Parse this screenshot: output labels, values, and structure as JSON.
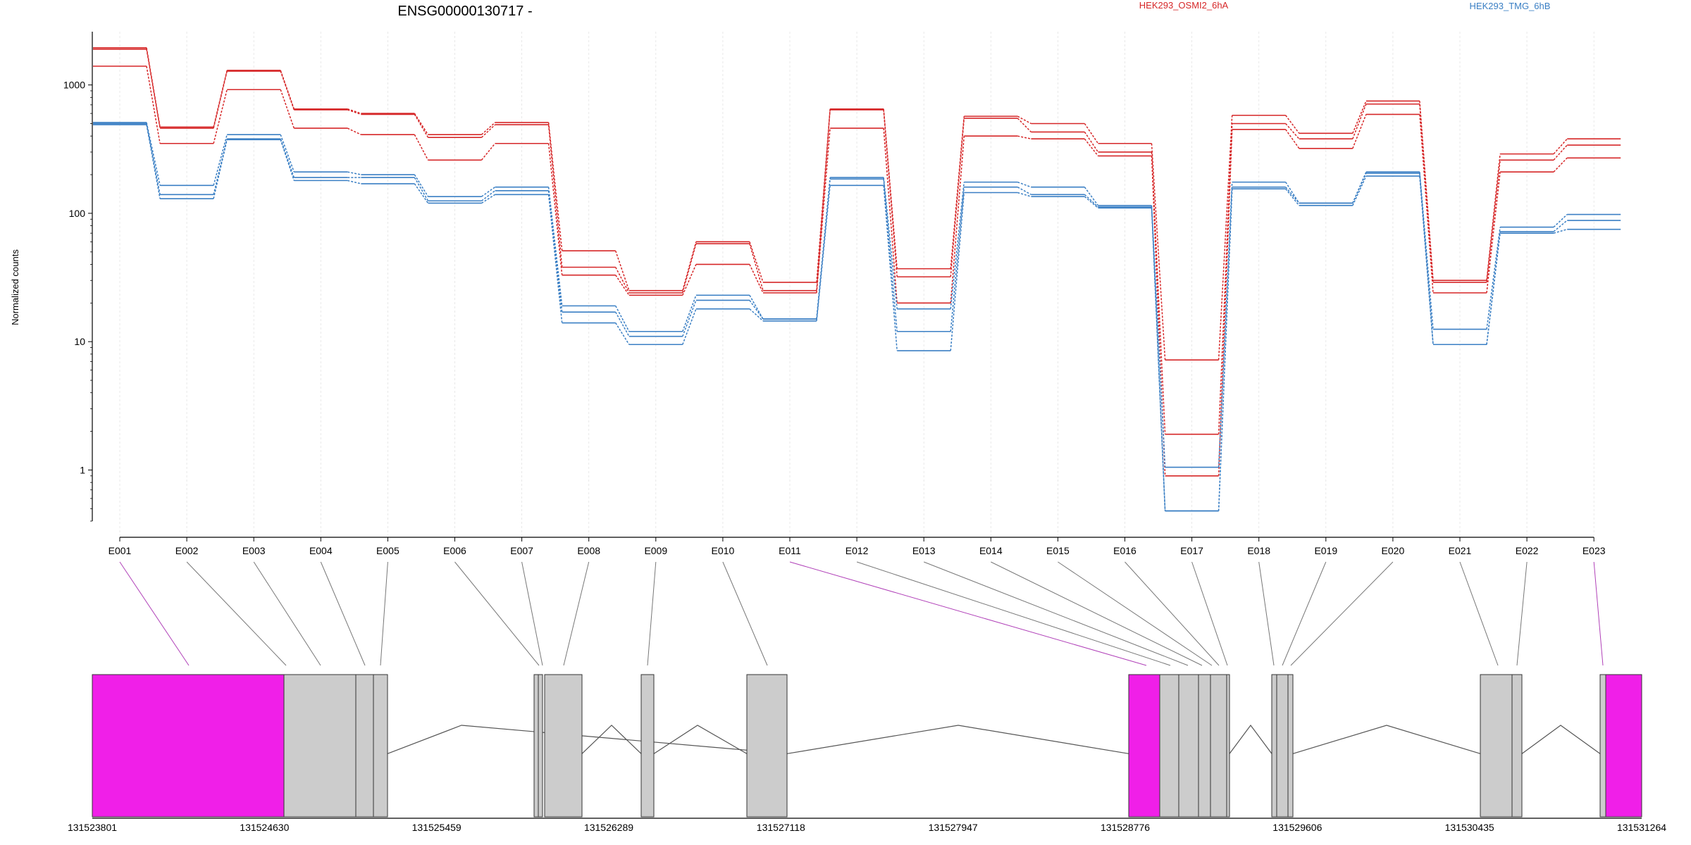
{
  "chart_data": {
    "type": "line",
    "title": "ENSG00000130717 -",
    "ylabel": "Normalized counts",
    "yscale": "log",
    "ylim": [
      0.4,
      2600
    ],
    "yticks": [
      {
        "v": 1,
        "label": "1"
      },
      {
        "v": 10,
        "label": "10"
      },
      {
        "v": 100,
        "label": "100"
      },
      {
        "v": 1000,
        "label": "1000"
      }
    ],
    "categories": [
      "E001",
      "E002",
      "E003",
      "E004",
      "E005",
      "E006",
      "E007",
      "E008",
      "E009",
      "E010",
      "E011",
      "E012",
      "E013",
      "E014",
      "E015",
      "E016",
      "E017",
      "E018",
      "E019",
      "E020",
      "E021",
      "E022",
      "E023"
    ],
    "legend": [
      {
        "label": "HEK293_OSMI2_6hA",
        "color": "#d62728"
      },
      {
        "label": "HEK293_TMG_6hB",
        "color": "#3a7fc4"
      }
    ],
    "series": [
      {
        "group": 0,
        "values": [
          1950,
          470,
          1300,
          650,
          600,
          410,
          510,
          51,
          25,
          60,
          29,
          650,
          37,
          570,
          500,
          350,
          7.2,
          580,
          420,
          750,
          30,
          290,
          380
        ]
      },
      {
        "group": 0,
        "values": [
          1900,
          460,
          1280,
          640,
          590,
          390,
          490,
          38,
          24,
          58,
          25,
          640,
          32,
          550,
          430,
          300,
          1.9,
          500,
          380,
          710,
          29,
          260,
          340
        ]
      },
      {
        "group": 0,
        "values": [
          1400,
          350,
          920,
          460,
          410,
          260,
          350,
          33,
          23,
          40,
          24,
          460,
          20,
          400,
          380,
          280,
          0.9,
          450,
          320,
          590,
          24,
          210,
          270
        ]
      },
      {
        "group": 1,
        "values": [
          510,
          165,
          410,
          210,
          200,
          135,
          160,
          19,
          12,
          23,
          15,
          190,
          18,
          175,
          160,
          115,
          1.05,
          175,
          120,
          210,
          12.5,
          78,
          98
        ]
      },
      {
        "group": 1,
        "values": [
          500,
          140,
          380,
          190,
          190,
          125,
          150,
          17,
          11,
          21,
          15,
          185,
          12,
          160,
          140,
          112,
          0.48,
          160,
          120,
          205,
          9.5,
          72,
          88
        ]
      },
      {
        "group": 1,
        "values": [
          490,
          130,
          375,
          180,
          170,
          120,
          140,
          14,
          9.5,
          18,
          14.5,
          165,
          8.5,
          145,
          135,
          110,
          0.48,
          155,
          115,
          195,
          9.5,
          70,
          75
        ]
      }
    ],
    "gene_model": {
      "coordinates": [
        "131523801",
        "131524630",
        "131525459",
        "131526289",
        "131527118",
        "131527947",
        "131528776",
        "131529606",
        "131530435",
        "131531264"
      ],
      "colors": {
        "exon": "#cccccc",
        "highlight": "#f01fe8",
        "line": "#555555"
      }
    }
  }
}
